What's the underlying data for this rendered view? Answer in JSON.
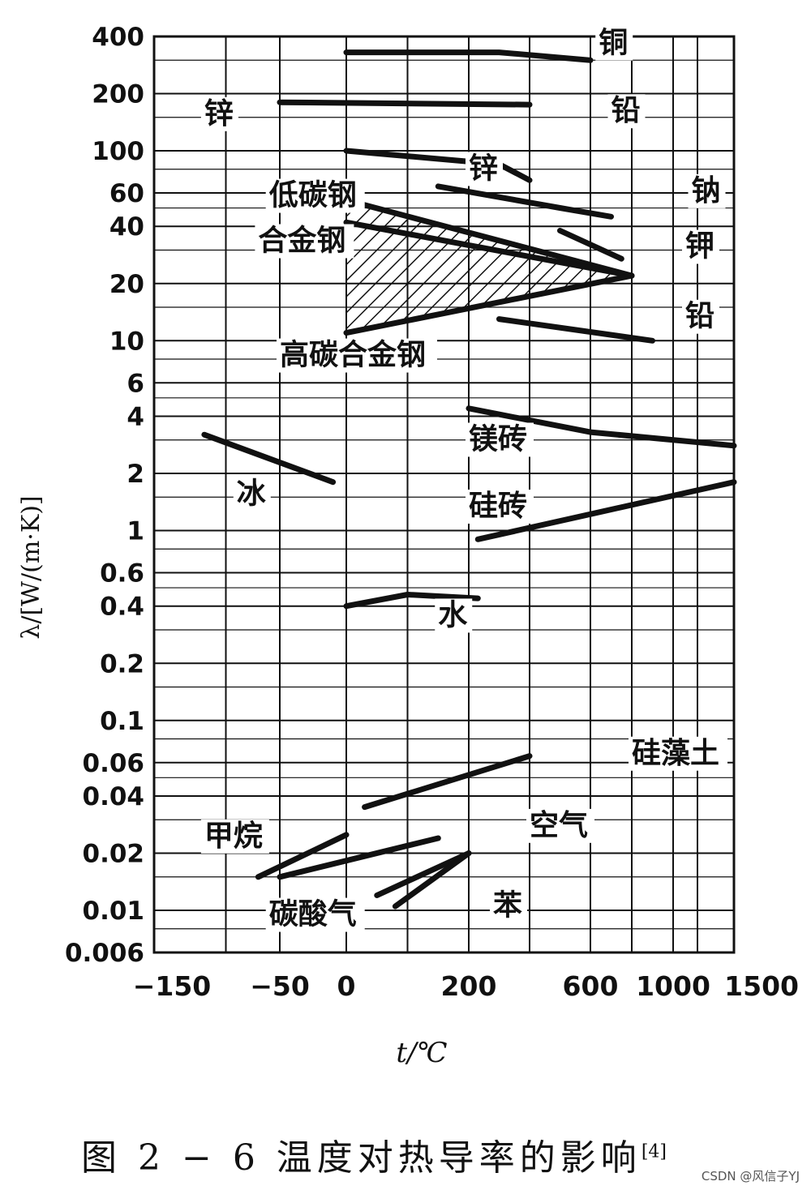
{
  "chart_data": {
    "type": "line",
    "xlabel": "t/℃",
    "ylabel": "λ/[W/(m·K)]",
    "x_scale": "nonlinear",
    "y_scale": "log",
    "xticks": [
      -150,
      -50,
      0,
      200,
      600,
      1000,
      1500
    ],
    "xtick_labels": [
      "−150",
      "−50",
      "0",
      "200",
      "600",
      "1000",
      "1500"
    ],
    "yticks": [
      400,
      200,
      100,
      60,
      40,
      20,
      10,
      6,
      4,
      2,
      1,
      0.6,
      0.4,
      0.2,
      0.1,
      0.06,
      0.04,
      0.02,
      0.01,
      0.006
    ],
    "ytick_labels": [
      "400",
      "200",
      "100",
      "60",
      "40",
      "20",
      "10",
      "6",
      "4",
      "2",
      "1",
      "0.6",
      "0.4",
      "0.2",
      "0.1",
      "0.06",
      "0.04",
      "0.02",
      "0.01",
      "0.006"
    ],
    "ylim": [
      0.006,
      400
    ],
    "xlim": [
      -150,
      1500
    ],
    "grid": true,
    "series": [
      {
        "name": "铜",
        "points": [
          [
            0,
            330
          ],
          [
            300,
            330
          ],
          [
            600,
            300
          ]
        ]
      },
      {
        "name": "铅",
        "points": [
          [
            -50,
            180
          ],
          [
            400,
            175
          ]
        ]
      },
      {
        "name": "锌",
        "points": [
          [
            0,
            100
          ],
          [
            300,
            85
          ],
          [
            400,
            70
          ]
        ]
      },
      {
        "name": "钠",
        "points": [
          [
            150,
            65
          ],
          [
            500,
            50
          ],
          [
            700,
            45
          ]
        ]
      },
      {
        "name": "钾",
        "points": [
          [
            500,
            38
          ],
          [
            750,
            27
          ]
        ]
      },
      {
        "name": "铅",
        "points": [
          [
            300,
            13
          ],
          [
            900,
            10
          ]
        ]
      },
      {
        "name": "低碳钢",
        "points": [
          [
            0,
            55
          ],
          [
            800,
            22
          ]
        ]
      },
      {
        "name": "合金钢",
        "points": [
          [
            0,
            42
          ],
          [
            800,
            22
          ]
        ]
      },
      {
        "name": "高碳合金钢",
        "points": [
          [
            0,
            11
          ],
          [
            800,
            22
          ]
        ]
      },
      {
        "name": "镁砖",
        "points": [
          [
            200,
            4.4
          ],
          [
            600,
            3.3
          ],
          [
            1500,
            2.8
          ]
        ]
      },
      {
        "name": "硅砖",
        "points": [
          [
            230,
            0.9
          ],
          [
            1500,
            1.8
          ]
        ]
      },
      {
        "name": "冰",
        "points": [
          [
            -120,
            3.2
          ],
          [
            -10,
            1.8
          ]
        ]
      },
      {
        "name": "水",
        "points": [
          [
            0,
            0.4
          ],
          [
            100,
            0.46
          ],
          [
            230,
            0.44
          ]
        ]
      },
      {
        "name": "硅藻土",
        "points": [
          [
            30,
            0.035
          ],
          [
            400,
            0.065
          ]
        ]
      },
      {
        "name": "甲烷",
        "points": [
          [
            -70,
            0.015
          ],
          [
            0,
            0.025
          ]
        ]
      },
      {
        "name": "空气",
        "points": [
          [
            -50,
            0.015
          ],
          [
            150,
            0.024
          ]
        ]
      },
      {
        "name": "碳酸气",
        "points": [
          [
            50,
            0.012
          ],
          [
            200,
            0.02
          ]
        ]
      },
      {
        "name": "苯",
        "points": [
          [
            80,
            0.0105
          ],
          [
            200,
            0.02
          ]
        ]
      }
    ],
    "region_labels": [
      {
        "text": "铜",
        "x": 640,
        "y": 330
      },
      {
        "text": "锌",
        "x": -120,
        "y": 140
      },
      {
        "text": "铅",
        "x": 700,
        "y": 145
      },
      {
        "text": "锌",
        "x": 200,
        "y": 72
      },
      {
        "text": "钠",
        "x": 1150,
        "y": 55
      },
      {
        "text": "低碳钢",
        "x": -60,
        "y": 52
      },
      {
        "text": "钾",
        "x": 1100,
        "y": 28
      },
      {
        "text": "合金钢",
        "x": -70,
        "y": 30
      },
      {
        "text": "铅",
        "x": 1100,
        "y": 12
      },
      {
        "text": "高碳合金钢",
        "x": -50,
        "y": 7.5
      },
      {
        "text": "镁砖",
        "x": 200,
        "y": 2.7
      },
      {
        "text": "冰",
        "x": -90,
        "y": 1.4
      },
      {
        "text": "硅砖",
        "x": 200,
        "y": 1.2
      },
      {
        "text": "水",
        "x": 150,
        "y": 0.32
      },
      {
        "text": "硅藻土",
        "x": 800,
        "y": 0.06
      },
      {
        "text": "空气",
        "x": 400,
        "y": 0.025
      },
      {
        "text": "甲烷",
        "x": -120,
        "y": 0.022
      },
      {
        "text": "碳酸气",
        "x": -60,
        "y": 0.0085
      },
      {
        "text": "苯",
        "x": 280,
        "y": 0.0095
      }
    ]
  },
  "caption": {
    "main": "图 2 − 6   温度对热导率的影响",
    "ref": "[4]"
  },
  "watermark": "CSDN @风信子YJ"
}
